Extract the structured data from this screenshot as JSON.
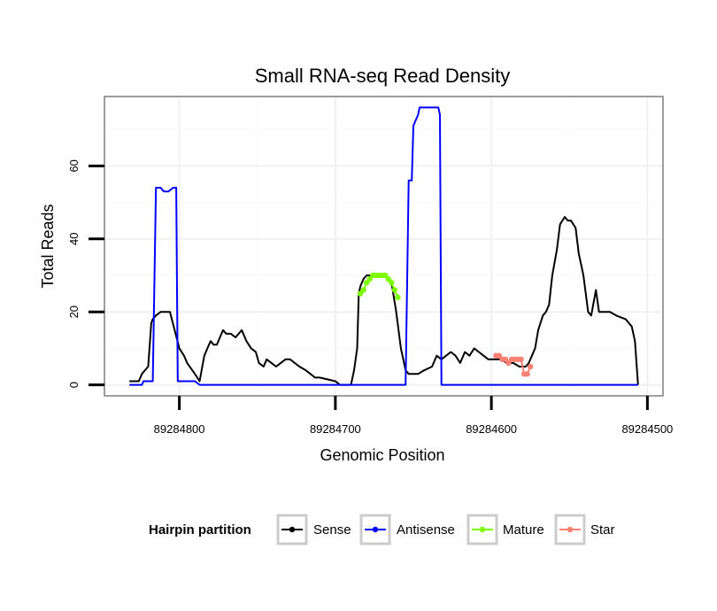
{
  "chart_data": {
    "type": "line",
    "title": "Small RNA-seq Read Density",
    "xlabel": "Genomic Position",
    "ylabel": "Total Reads",
    "x_reversed": true,
    "xlim": [
      89284848,
      89284490
    ],
    "ylim": [
      -3,
      79
    ],
    "x_ticks": [
      89284800,
      89284700,
      89284600,
      89284500
    ],
    "x_tick_labels": [
      "89284800",
      "89284700",
      "89284600",
      "89284500"
    ],
    "y_ticks": [
      0,
      20,
      40,
      60
    ],
    "y_tick_labels": [
      "0",
      "20",
      "40",
      "60"
    ],
    "grid": true,
    "legend": {
      "title": "Hairpin partition",
      "position": "bottom",
      "entries": [
        "Sense",
        "Antisense",
        "Mature",
        "Star"
      ]
    },
    "series": [
      {
        "name": "Sense",
        "color": "#000000",
        "style": "line",
        "x": [
          89284832,
          89284826,
          89284824,
          89284822,
          89284820,
          89284818,
          89284817,
          89284815,
          89284812,
          89284810,
          89284806,
          89284800,
          89284797,
          89284795,
          89284790,
          89284787,
          89284784,
          89284782,
          89284780,
          89284778,
          89284776,
          89284772,
          89284770,
          89284767,
          89284764,
          89284760,
          89284757,
          89284754,
          89284751,
          89284749,
          89284746,
          89284744,
          89284741,
          89284738,
          89284735,
          89284732,
          89284729,
          89284726,
          89284723,
          89284719,
          89284716,
          89284713,
          89284710,
          89284700,
          89284697,
          89284690,
          89284688,
          89284686,
          89284685,
          89284684,
          89284682,
          89284680,
          89284678,
          89284676,
          89284672,
          89284668,
          89284664,
          89284661,
          89284658,
          89284655,
          89284653,
          89284650,
          89284647,
          89284643,
          89284638,
          89284635,
          89284632,
          89284629,
          89284626,
          89284623,
          89284620,
          89284617,
          89284614,
          89284611,
          89284608,
          89284605,
          89284602,
          89284598,
          89284594,
          89284590,
          89284586,
          89284582,
          89284578,
          89284576,
          89284574,
          89284572,
          89284570,
          89284567,
          89284565,
          89284563,
          89284561,
          89284558,
          89284556,
          89284553,
          89284551,
          89284549,
          89284546,
          89284544,
          89284541,
          89284538,
          89284536,
          89284533,
          89284531,
          89284529,
          89284524,
          89284520,
          89284514,
          89284510,
          89284508,
          89284506
        ],
        "values": [
          1,
          1,
          3,
          4,
          5,
          17,
          18,
          19,
          20,
          20,
          20,
          10,
          8,
          6,
          3,
          1,
          8,
          10,
          12,
          11,
          11,
          15,
          14,
          14,
          13,
          15,
          12,
          10,
          9,
          6,
          5,
          7,
          6,
          5,
          6,
          7,
          7,
          6,
          5,
          4,
          3,
          2,
          2,
          1,
          0,
          0,
          4,
          10,
          25,
          27,
          29,
          30,
          30,
          30,
          30,
          30,
          28,
          20,
          10,
          4,
          3,
          3,
          3,
          4,
          5,
          8,
          7,
          8,
          9,
          8,
          6,
          9,
          8,
          10,
          9,
          8,
          7,
          7,
          7,
          6,
          6,
          5,
          5,
          6,
          8,
          10,
          15,
          19,
          20,
          22,
          30,
          37,
          44,
          46,
          45,
          45,
          43,
          36,
          30,
          20,
          19,
          26,
          20,
          20,
          20,
          19,
          18,
          16,
          12,
          0
        ]
      },
      {
        "name": "Antisense",
        "color": "#0000FF",
        "style": "line",
        "x": [
          89284832,
          89284824,
          89284823,
          89284817,
          89284815,
          89284812,
          89284810,
          89284807,
          89284804,
          89284802,
          89284801,
          89284800,
          89284798,
          89284796,
          89284793,
          89284790,
          89284787,
          89284655,
          89284653,
          89284651,
          89284650,
          89284647,
          89284646,
          89284634,
          89284633,
          89284632,
          89284506
        ],
        "values": [
          0,
          0,
          1,
          1,
          54,
          54,
          53,
          53,
          54,
          54,
          1,
          1,
          1,
          1,
          1,
          1,
          0,
          0,
          56,
          56,
          71,
          74,
          76,
          76,
          74,
          0,
          0
        ]
      },
      {
        "name": "Mature",
        "color": "#7CFC00",
        "style": "line+points",
        "x": [
          89284684,
          89284682,
          89284680,
          89284678,
          89284676,
          89284674,
          89284672,
          89284670,
          89284668,
          89284666,
          89284664,
          89284662,
          89284660
        ],
        "values": [
          25,
          26,
          28,
          29,
          30,
          30,
          30,
          30,
          30,
          29,
          28,
          26,
          24
        ]
      },
      {
        "name": "Star",
        "color": "#FA8072",
        "style": "line+points",
        "x": [
          89284597,
          89284595,
          89284593,
          89284591,
          89284589,
          89284587,
          89284585,
          89284583,
          89284581,
          89284579,
          89284577,
          89284575
        ],
        "values": [
          8,
          8,
          7,
          7,
          6,
          7,
          7,
          7,
          7,
          3,
          3,
          5
        ]
      }
    ]
  }
}
